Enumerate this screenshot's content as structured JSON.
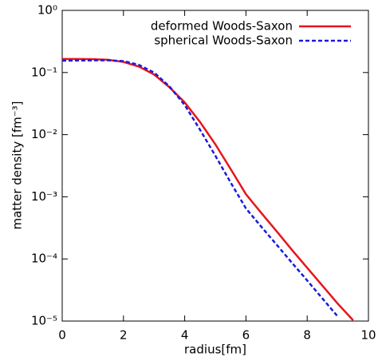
{
  "chart_data": {
    "type": "line",
    "xlabel": "radius[fm]",
    "ylabel": "matter density [fm⁻³]",
    "x": [
      0,
      0.5,
      1,
      1.5,
      2,
      2.5,
      3,
      3.5,
      4,
      4.5,
      5,
      5.5,
      6,
      6.5,
      7,
      7.5,
      8,
      8.5,
      9,
      9.5
    ],
    "series": [
      {
        "name": "deformed Woods-Saxon",
        "color": "#e8141b",
        "linestyle": "solid",
        "values": [
          0.165,
          0.165,
          0.164,
          0.16,
          0.148,
          0.125,
          0.093,
          0.058,
          0.033,
          0.016,
          0.007,
          0.0028,
          0.0011,
          0.00055,
          0.00028,
          0.00014,
          7.2e-05,
          3.7e-05,
          1.9e-05,
          1.03e-05
        ]
      },
      {
        "name": "spherical Woods-Saxon",
        "color": "#1a1adb",
        "linestyle": "dashed",
        "values": [
          0.155,
          0.156,
          0.157,
          0.157,
          0.153,
          0.133,
          0.1,
          0.06,
          0.03,
          0.012,
          0.0046,
          0.0017,
          0.00065,
          0.00033,
          0.00017,
          8.7e-05,
          4.5e-05,
          2.3e-05,
          1.18e-05,
          null
        ]
      }
    ],
    "xlim": [
      0,
      10
    ],
    "xticks": [
      0,
      2,
      4,
      6,
      8,
      10
    ],
    "ylim": [
      1e-05,
      1
    ],
    "log_y": true,
    "yticks": [
      {
        "value": 1e-05,
        "label": "10⁻⁵"
      },
      {
        "value": 0.0001,
        "label": "10⁻⁴"
      },
      {
        "value": 0.001,
        "label": "10⁻³"
      },
      {
        "value": 0.01,
        "label": "10⁻²"
      },
      {
        "value": 0.1,
        "label": "10⁻¹"
      },
      {
        "value": 1,
        "label": "10⁰"
      }
    ],
    "legend": "top-right"
  }
}
